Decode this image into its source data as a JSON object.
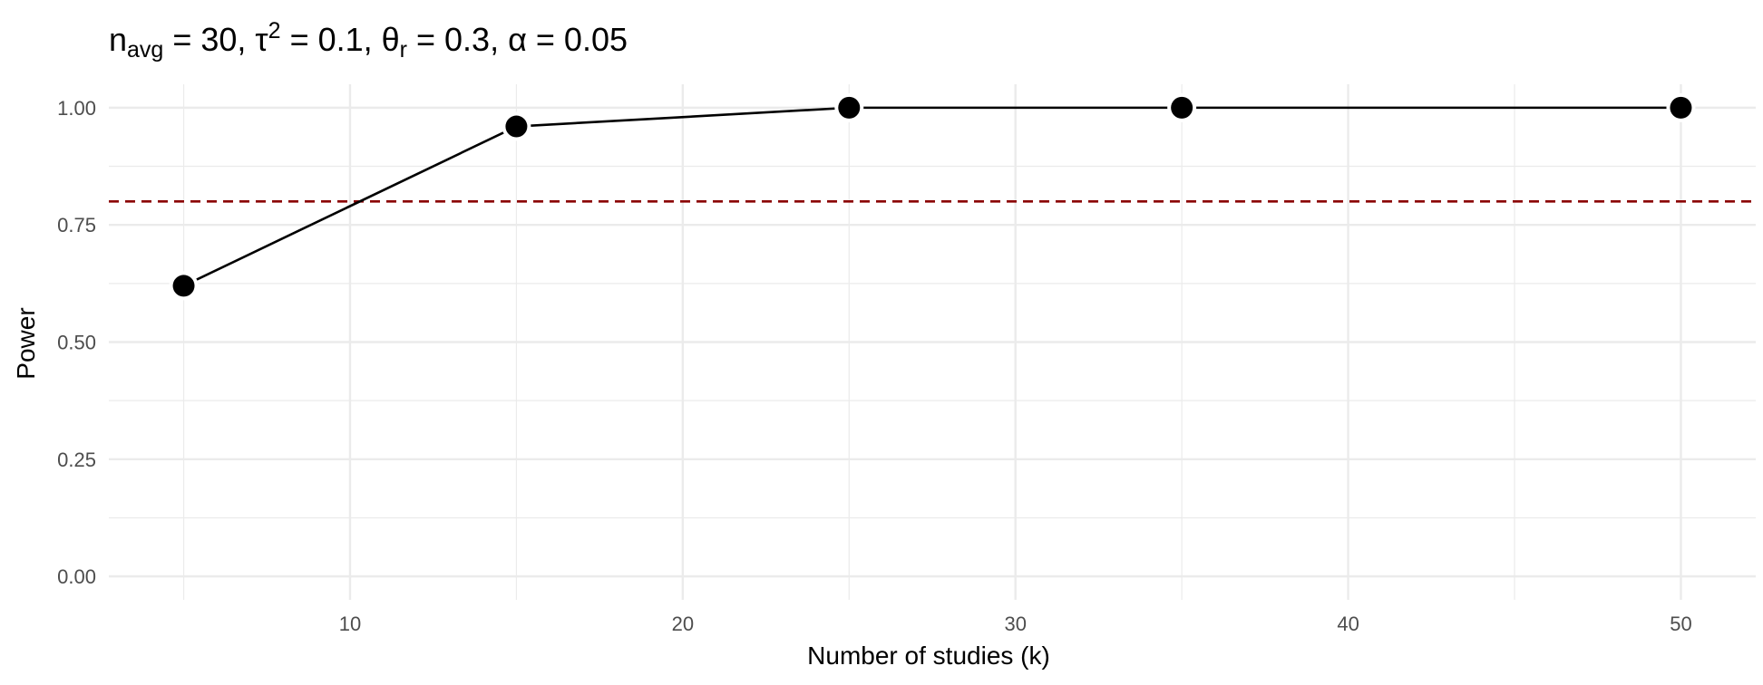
{
  "chart_data": {
    "type": "line",
    "title": {
      "parts": [
        {
          "text": "n"
        },
        {
          "text": "avg",
          "shift": "sub"
        },
        {
          "text": " = 30, "
        },
        {
          "text": "τ"
        },
        {
          "text": "2",
          "shift": "sup"
        },
        {
          "text": " = 0.1, "
        },
        {
          "text": "θ"
        },
        {
          "text": "r",
          "shift": "sub"
        },
        {
          "text": " = 0.3, "
        },
        {
          "text": "α = 0.05"
        }
      ]
    },
    "xlabel": "Number of studies (k)",
    "ylabel": "Power",
    "xlim": [
      2.75,
      52.25
    ],
    "ylim": [
      -0.05,
      1.05
    ],
    "x_ticks": [
      10,
      20,
      30,
      40,
      50
    ],
    "x_minor_ticks": [
      5,
      15,
      25,
      35,
      45
    ],
    "y_ticks": [
      0,
      0.25,
      0.5,
      0.75,
      1
    ],
    "y_tick_labels": [
      "0.00",
      "0.25",
      "0.50",
      "0.75",
      "1.00"
    ],
    "y_minor_ticks": [
      0.125,
      0.375,
      0.625,
      0.875
    ],
    "grid": true,
    "series": [
      {
        "x": [
          5,
          15,
          25,
          35,
          50
        ],
        "y": [
          0.62,
          0.96,
          1.0,
          1.0,
          1.0
        ],
        "line_color": "#000000",
        "point_color": "#000000"
      }
    ],
    "reference_line": {
      "orientation": "horizontal",
      "y": 0.8,
      "style": "dashed",
      "color": "#8b0000"
    },
    "colors": {
      "grid": "#ebebeb",
      "tick_text": "#4d4d4d",
      "background": "#ffffff"
    }
  }
}
